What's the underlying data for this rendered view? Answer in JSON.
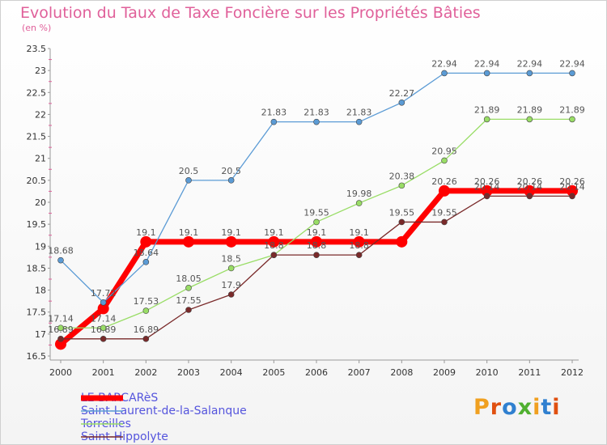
{
  "title": "Evolution du Taux de Taxe Foncière sur les Propriétés Bâties",
  "unit": "(en %)",
  "logo": {
    "text": "Proxiti",
    "colors": [
      "#f0a020",
      "#e05010",
      "#3080d0",
      "#50b030",
      "#f0a020",
      "#3080d0",
      "#e05010"
    ]
  },
  "chart_data": {
    "type": "line",
    "title": "Evolution du Taux de Taxe Foncière sur les Propriétés Bâties",
    "ylabel": "(en %)",
    "xlabel": "",
    "ylim": [
      16.5,
      23.5
    ],
    "yticks": [
      "16.5",
      "17",
      "17.5",
      "18",
      "18.5",
      "19",
      "19.5",
      "20",
      "20.5",
      "21",
      "21.5",
      "22",
      "22.5",
      "23",
      "23.5"
    ],
    "x": [
      "2000",
      "2001",
      "2002",
      "2003",
      "2004",
      "2005",
      "2006",
      "2007",
      "2008",
      "2009",
      "2010",
      "2011",
      "2012"
    ],
    "series": [
      {
        "name": "LE BARCARèS",
        "color": "#ff0000",
        "values": [
          16.77,
          17.58,
          19.1,
          19.1,
          19.1,
          19.1,
          19.1,
          19.1,
          19.1,
          20.26,
          20.26,
          20.26,
          20.26
        ],
        "labels": [
          "",
          "",
          "19.1",
          "19.1",
          "19.1",
          "19.1",
          "19.1",
          "19.1",
          "",
          "20.26",
          "20.26",
          "20.26",
          "20.26"
        ]
      },
      {
        "name": "Saint-Laurent-de-la-Salanque",
        "color": "#5b9bd5",
        "values": [
          18.68,
          17.72,
          18.64,
          20.5,
          20.5,
          21.83,
          21.83,
          21.83,
          22.27,
          22.94,
          22.94,
          22.94,
          22.94
        ],
        "labels": [
          "18.68",
          "17.72",
          "18.64",
          "20.5",
          "20.5",
          "21.83",
          "21.83",
          "21.83",
          "22.27",
          "22.94",
          "22.94",
          "22.94",
          "22.94"
        ]
      },
      {
        "name": "Torreilles",
        "color": "#99dd66",
        "values": [
          17.14,
          17.14,
          17.53,
          18.05,
          18.5,
          18.8,
          19.55,
          19.98,
          20.38,
          20.95,
          21.89,
          21.89,
          21.89
        ],
        "labels": [
          "17.14",
          "17.14",
          "17.53",
          "18.05",
          "18.5",
          "",
          "19.55",
          "19.98",
          "20.38",
          "20.95",
          "21.89",
          "21.89",
          "21.89"
        ]
      },
      {
        "name": "Saint-Hippolyte",
        "color": "#7a2a2a",
        "values": [
          16.89,
          16.89,
          16.89,
          17.55,
          17.9,
          18.8,
          18.8,
          18.8,
          19.55,
          19.55,
          20.14,
          20.14,
          20.14
        ],
        "labels": [
          "16.89",
          "16.89",
          "16.89",
          "17.55",
          "17.9",
          "18.8",
          "18.8",
          "18.8",
          "19.55",
          "19.55",
          "20.14",
          "20.14",
          "20.14"
        ]
      }
    ],
    "legend": "bottom-left",
    "grid": false
  }
}
